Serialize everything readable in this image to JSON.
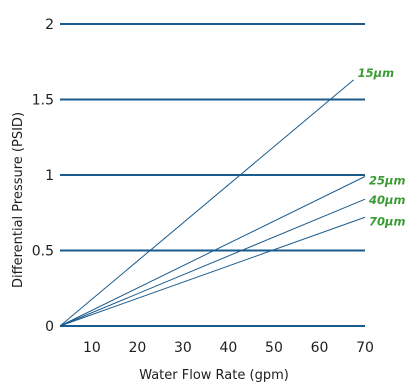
{
  "chart_data": {
    "type": "line",
    "title": "",
    "xlabel": "Water Flow Rate (gpm)",
    "ylabel": "Differential Pressure (PSID)",
    "xlim": [
      3,
      70
    ],
    "ylim": [
      0,
      2
    ],
    "x_ticks": [
      {
        "value": 10,
        "label": "10"
      },
      {
        "value": 20,
        "label": "20"
      },
      {
        "value": 30,
        "label": "30"
      },
      {
        "value": 40,
        "label": "40"
      },
      {
        "value": 50,
        "label": "50"
      },
      {
        "value": 60,
        "label": "60"
      },
      {
        "value": 70,
        "label": "70"
      }
    ],
    "y_ticks": [
      {
        "value": 0,
        "label": "0"
      },
      {
        "value": 0.5,
        "label": "0.5"
      },
      {
        "value": 1,
        "label": "1"
      },
      {
        "value": 1.5,
        "label": "1.5"
      },
      {
        "value": 2,
        "label": "2"
      }
    ],
    "grid": {
      "horizontal": true,
      "vertical": false
    },
    "series": [
      {
        "name": "15µm",
        "x": [
          3,
          67.5
        ],
        "y": [
          0,
          1.63
        ]
      },
      {
        "name": "25µm",
        "x": [
          3,
          70
        ],
        "y": [
          0,
          0.99
        ]
      },
      {
        "name": "40µm",
        "x": [
          3,
          70
        ],
        "y": [
          0,
          0.84
        ]
      },
      {
        "name": "70µm",
        "x": [
          3,
          70
        ],
        "y": [
          0,
          0.72
        ]
      }
    ],
    "colors": {
      "gridline": "#1a5b8e",
      "series_line": "#1a5b8e",
      "series_label": "#3a9b35",
      "text": "#1e1e1e"
    }
  }
}
